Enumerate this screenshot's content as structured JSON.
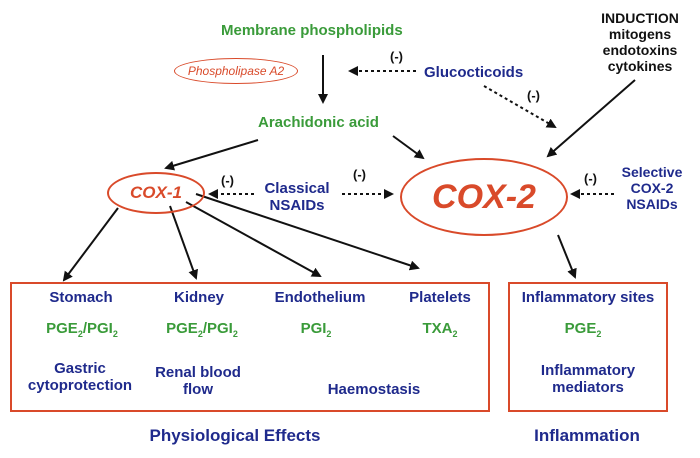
{
  "top": {
    "membrane": "Membrane phospholipids",
    "pla2": "Phospholipase A2",
    "glucocorticoids": "Glucocticoids",
    "induction": [
      "INDUCTION",
      "mitogens",
      "endotoxins",
      "cytokines"
    ],
    "arachidonic": "Arachidonic acid"
  },
  "middle": {
    "cox1": "COX-1",
    "cox2": "COX-2",
    "classical": [
      "Classical",
      "NSAIDs"
    ],
    "selective": [
      "Selective",
      "COX-2",
      "NSAIDs"
    ],
    "inhibit": "(-)"
  },
  "physiological": {
    "organs": [
      {
        "name": "Stomach",
        "mediator": "PGE",
        "mediator_sub": "2",
        "mediator2": "/PGI",
        "mediator2_sub": "2"
      },
      {
        "name": "Kidney",
        "mediator": "PGE",
        "mediator_sub": "2",
        "mediator2": "/PGI",
        "mediator2_sub": "2"
      },
      {
        "name": "Endothelium",
        "mediator": "PGI",
        "mediator_sub": "2"
      },
      {
        "name": "Platelets",
        "mediator": "TXA",
        "mediator_sub": "2"
      }
    ],
    "gastric": [
      "Gastric",
      "cytoprotection"
    ],
    "renal": [
      "Renal blood",
      "flow"
    ],
    "haemostasis": "Haemostasis",
    "label": "Physiological Effects"
  },
  "inflammation": {
    "sites": "Inflammatory sites",
    "mediator": "PGE",
    "mediator_sub": "2",
    "mediators": [
      "Inflammatory",
      "mediators"
    ],
    "label": "Inflammation"
  }
}
